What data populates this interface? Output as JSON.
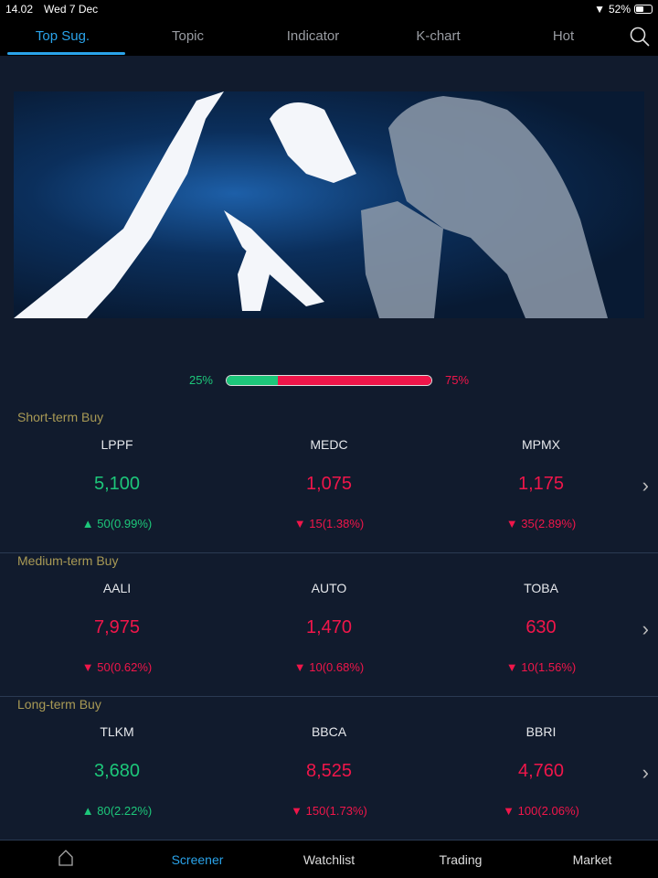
{
  "status": {
    "time": "14.02",
    "date": "Wed 7 Dec",
    "battery": "52%",
    "battery_level": 0.52
  },
  "tabs": [
    {
      "label": "Top Sug.",
      "active": true
    },
    {
      "label": "Topic"
    },
    {
      "label": "Indicator"
    },
    {
      "label": "K-chart"
    },
    {
      "label": "Hot"
    }
  ],
  "sentiment": {
    "bull": "25%",
    "bear": "75%",
    "bull_fraction": 0.25
  },
  "colors": {
    "up": "#1dc77a",
    "down": "#f0164a",
    "accent": "#2aa3ea",
    "section_title": "#a99a55"
  },
  "sections": [
    {
      "title": "Short-term Buy",
      "items": [
        {
          "symbol": "LPPF",
          "price": "5,100",
          "change": "50(0.99%)",
          "dir": "up"
        },
        {
          "symbol": "MEDC",
          "price": "1,075",
          "change": "15(1.38%)",
          "dir": "down"
        },
        {
          "symbol": "MPMX",
          "price": "1,175",
          "change": "35(2.89%)",
          "dir": "down"
        }
      ]
    },
    {
      "title": "Medium-term Buy",
      "items": [
        {
          "symbol": "AALI",
          "price": "7,975",
          "change": "50(0.62%)",
          "dir": "down"
        },
        {
          "symbol": "AUTO",
          "price": "1,470",
          "change": "10(0.68%)",
          "dir": "down"
        },
        {
          "symbol": "TOBA",
          "price": "630",
          "change": "10(1.56%)",
          "dir": "down"
        }
      ]
    },
    {
      "title": "Long-term Buy",
      "items": [
        {
          "symbol": "TLKM",
          "price": "3,680",
          "change": "80(2.22%)",
          "dir": "up"
        },
        {
          "symbol": "BBCA",
          "price": "8,525",
          "change": "150(1.73%)",
          "dir": "down"
        },
        {
          "symbol": "BBRI",
          "price": "4,760",
          "change": "100(2.06%)",
          "dir": "down"
        }
      ]
    }
  ],
  "bottom_nav": [
    {
      "icon": "home-icon"
    },
    {
      "label": "Screener",
      "active": true
    },
    {
      "label": "Watchlist"
    },
    {
      "label": "Trading"
    },
    {
      "label": "Market"
    }
  ]
}
